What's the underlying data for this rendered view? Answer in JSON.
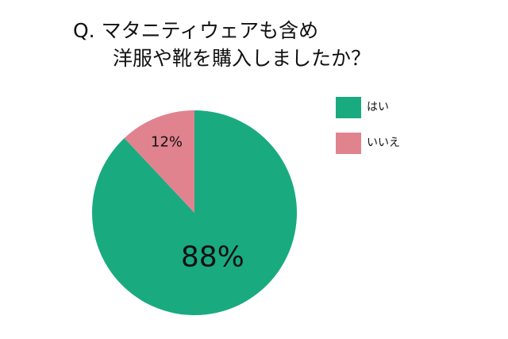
{
  "chart_data": {
    "type": "pie",
    "title": [
      "Q. マタニティウェアも含め",
      "洋服や靴を購入しましたか？"
    ],
    "categories": [
      "はい",
      "いいえ"
    ],
    "values": [
      88,
      12
    ],
    "value_labels": [
      "88%",
      "12%"
    ],
    "colors": [
      "#1aaa80",
      "#e0838f"
    ],
    "legend": "right"
  }
}
